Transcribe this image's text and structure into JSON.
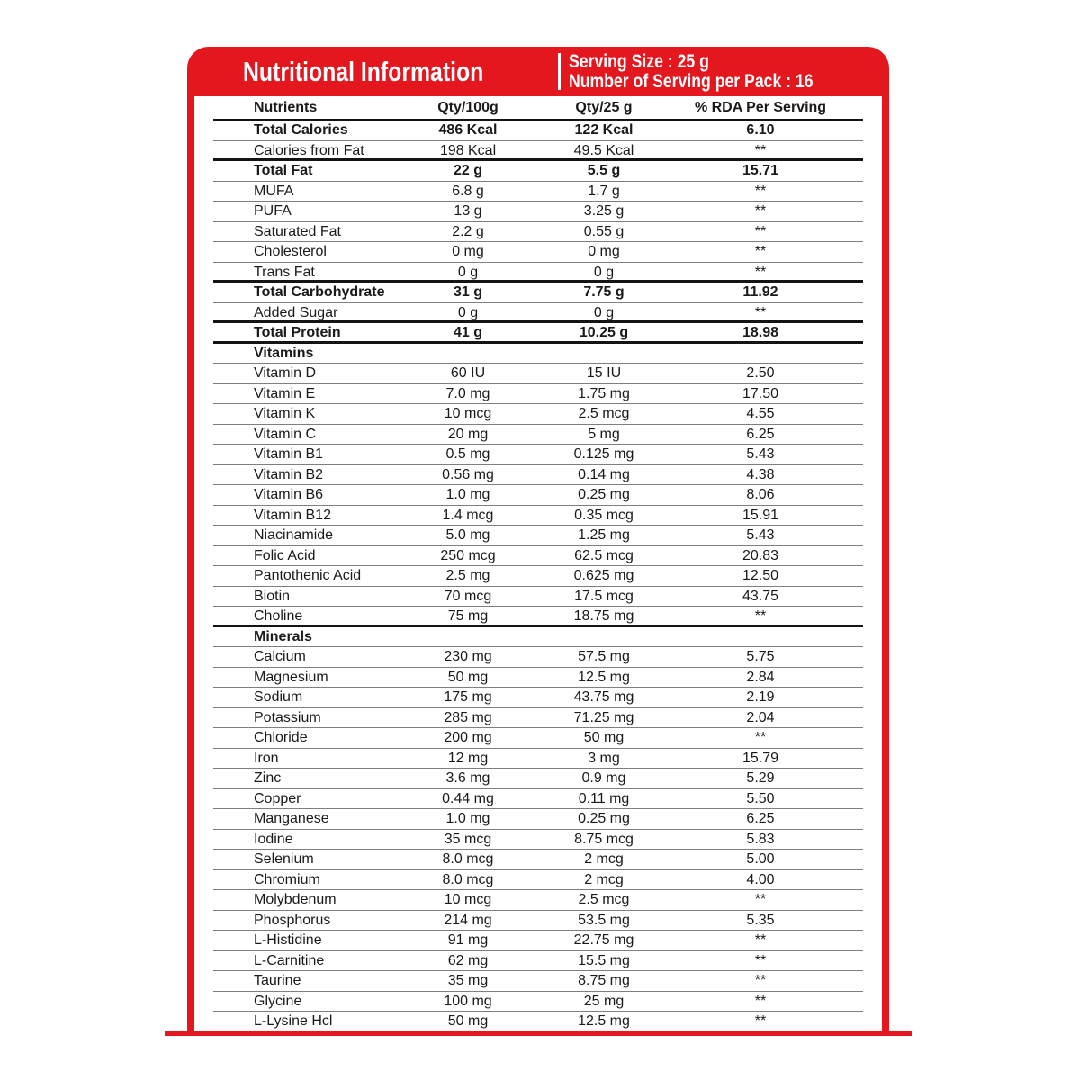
{
  "header": {
    "title": "Nutritional Information",
    "serving_size": "Serving Size : 25 g",
    "servings_per_pack": "Number of Serving per Pack : 16"
  },
  "colors": {
    "brand_red": "#e4171f",
    "rule_thin": "#7f7f7f",
    "rule_thick": "#141414",
    "text": "#1a1a1a"
  },
  "table": {
    "columns": [
      "Nutrients",
      "Qty/100g",
      "Qty/25 g",
      "% RDA Per Serving"
    ],
    "rows": [
      {
        "name": "Total Calories",
        "qty100": "486 Kcal",
        "qty25": "122 Kcal",
        "rda": "6.10",
        "style": "bold",
        "rule": "thin"
      },
      {
        "name": "Calories from Fat",
        "qty100": "198 Kcal",
        "qty25": "49.5 Kcal",
        "rda": "**",
        "style": "normal",
        "rule": "thick"
      },
      {
        "name": "Total Fat",
        "qty100": "22 g",
        "qty25": "5.5 g",
        "rda": "15.71",
        "style": "bold",
        "rule": "thin"
      },
      {
        "name": "MUFA",
        "qty100": "6.8 g",
        "qty25": "1.7 g",
        "rda": "**",
        "style": "normal",
        "rule": "thin"
      },
      {
        "name": "PUFA",
        "qty100": "13 g",
        "qty25": "3.25 g",
        "rda": "**",
        "style": "normal",
        "rule": "thin"
      },
      {
        "name": "Saturated Fat",
        "qty100": "2.2 g",
        "qty25": "0.55 g",
        "rda": "**",
        "style": "normal",
        "rule": "thin"
      },
      {
        "name": "Cholesterol",
        "qty100": "0 mg",
        "qty25": "0 mg",
        "rda": "**",
        "style": "normal",
        "rule": "thin"
      },
      {
        "name": "Trans Fat",
        "qty100": "0 g",
        "qty25": "0 g",
        "rda": "**",
        "style": "normal",
        "rule": "thick"
      },
      {
        "name": "Total Carbohydrate",
        "qty100": "31 g",
        "qty25": "7.75 g",
        "rda": "11.92",
        "style": "bold",
        "rule": "thin"
      },
      {
        "name": "Added Sugar",
        "qty100": "0 g",
        "qty25": "0 g",
        "rda": "**",
        "style": "normal",
        "rule": "thick"
      },
      {
        "name": "Total Protein",
        "qty100": "41 g",
        "qty25": "10.25 g",
        "rda": "18.98",
        "style": "bold",
        "rule": "thick"
      },
      {
        "name": "Vitamins",
        "qty100": "",
        "qty25": "",
        "rda": "",
        "style": "section",
        "rule": "thin"
      },
      {
        "name": "Vitamin D",
        "qty100": "60 IU",
        "qty25": "15 IU",
        "rda": "2.50",
        "style": "normal",
        "rule": "thin"
      },
      {
        "name": "Vitamin E",
        "qty100": "7.0 mg",
        "qty25": "1.75 mg",
        "rda": "17.50",
        "style": "normal",
        "rule": "thin"
      },
      {
        "name": "Vitamin K",
        "qty100": "10 mcg",
        "qty25": "2.5 mcg",
        "rda": "4.55",
        "style": "normal",
        "rule": "thin"
      },
      {
        "name": "Vitamin C",
        "qty100": "20 mg",
        "qty25": "5 mg",
        "rda": "6.25",
        "style": "normal",
        "rule": "thin"
      },
      {
        "name": "Vitamin B1",
        "qty100": "0.5 mg",
        "qty25": "0.125 mg",
        "rda": "5.43",
        "style": "normal",
        "rule": "thin"
      },
      {
        "name": "Vitamin B2",
        "qty100": "0.56 mg",
        "qty25": "0.14 mg",
        "rda": "4.38",
        "style": "normal",
        "rule": "thin"
      },
      {
        "name": "Vitamin B6",
        "qty100": "1.0 mg",
        "qty25": "0.25 mg",
        "rda": "8.06",
        "style": "normal",
        "rule": "thin"
      },
      {
        "name": "Vitamin B12",
        "qty100": "1.4 mcg",
        "qty25": "0.35 mcg",
        "rda": "15.91",
        "style": "normal",
        "rule": "thin"
      },
      {
        "name": "Niacinamide",
        "qty100": "5.0 mg",
        "qty25": "1.25 mg",
        "rda": "5.43",
        "style": "normal",
        "rule": "thin"
      },
      {
        "name": "Folic Acid",
        "qty100": "250 mcg",
        "qty25": "62.5 mcg",
        "rda": "20.83",
        "style": "normal",
        "rule": "thin"
      },
      {
        "name": "Pantothenic Acid",
        "qty100": "2.5 mg",
        "qty25": "0.625 mg",
        "rda": "12.50",
        "style": "normal",
        "rule": "thin"
      },
      {
        "name": "Biotin",
        "qty100": "70 mcg",
        "qty25": "17.5 mcg",
        "rda": "43.75",
        "style": "normal",
        "rule": "thin"
      },
      {
        "name": "Choline",
        "qty100": "75 mg",
        "qty25": "18.75 mg",
        "rda": "**",
        "style": "normal",
        "rule": "thick"
      },
      {
        "name": "Minerals",
        "qty100": "",
        "qty25": "",
        "rda": "",
        "style": "section",
        "rule": "thin"
      },
      {
        "name": "Calcium",
        "qty100": "230 mg",
        "qty25": "57.5 mg",
        "rda": "5.75",
        "style": "normal",
        "rule": "thin"
      },
      {
        "name": "Magnesium",
        "qty100": "50 mg",
        "qty25": "12.5 mg",
        "rda": "2.84",
        "style": "normal",
        "rule": "thin"
      },
      {
        "name": "Sodium",
        "qty100": "175 mg",
        "qty25": "43.75 mg",
        "rda": "2.19",
        "style": "normal",
        "rule": "thin"
      },
      {
        "name": "Potassium",
        "qty100": "285 mg",
        "qty25": "71.25 mg",
        "rda": "2.04",
        "style": "normal",
        "rule": "thin"
      },
      {
        "name": "Chloride",
        "qty100": "200 mg",
        "qty25": "50 mg",
        "rda": "**",
        "style": "normal",
        "rule": "thin"
      },
      {
        "name": "Iron",
        "qty100": "12 mg",
        "qty25": "3 mg",
        "rda": "15.79",
        "style": "normal",
        "rule": "thin"
      },
      {
        "name": "Zinc",
        "qty100": "3.6 mg",
        "qty25": "0.9 mg",
        "rda": "5.29",
        "style": "normal",
        "rule": "thin"
      },
      {
        "name": "Copper",
        "qty100": "0.44 mg",
        "qty25": "0.11 mg",
        "rda": "5.50",
        "style": "normal",
        "rule": "thin"
      },
      {
        "name": "Manganese",
        "qty100": "1.0 mg",
        "qty25": "0.25 mg",
        "rda": "6.25",
        "style": "normal",
        "rule": "thin"
      },
      {
        "name": "Iodine",
        "qty100": "35 mcg",
        "qty25": "8.75 mcg",
        "rda": "5.83",
        "style": "normal",
        "rule": "thin"
      },
      {
        "name": "Selenium",
        "qty100": "8.0 mcg",
        "qty25": "2 mcg",
        "rda": "5.00",
        "style": "normal",
        "rule": "thin"
      },
      {
        "name": "Chromium",
        "qty100": "8.0 mcg",
        "qty25": "2 mcg",
        "rda": "4.00",
        "style": "normal",
        "rule": "thin"
      },
      {
        "name": "Molybdenum",
        "qty100": "10 mcg",
        "qty25": "2.5 mcg",
        "rda": "**",
        "style": "normal",
        "rule": "thin"
      },
      {
        "name": "Phosphorus",
        "qty100": "214 mg",
        "qty25": "53.5 mg",
        "rda": "5.35",
        "style": "normal",
        "rule": "thin"
      },
      {
        "name": "L-Histidine",
        "qty100": "91 mg",
        "qty25": "22.75 mg",
        "rda": "**",
        "style": "normal",
        "rule": "thin"
      },
      {
        "name": "L-Carnitine",
        "qty100": "62 mg",
        "qty25": "15.5 mg",
        "rda": "**",
        "style": "normal",
        "rule": "thin"
      },
      {
        "name": "Taurine",
        "qty100": "35 mg",
        "qty25": "8.75 mg",
        "rda": "**",
        "style": "normal",
        "rule": "thin"
      },
      {
        "name": "Glycine",
        "qty100": "100 mg",
        "qty25": "25 mg",
        "rda": "**",
        "style": "normal",
        "rule": "thin"
      },
      {
        "name": "L-Lysine Hcl",
        "qty100": "50 mg",
        "qty25": "12.5 mg",
        "rda": "**",
        "style": "normal",
        "rule": "none"
      }
    ]
  }
}
